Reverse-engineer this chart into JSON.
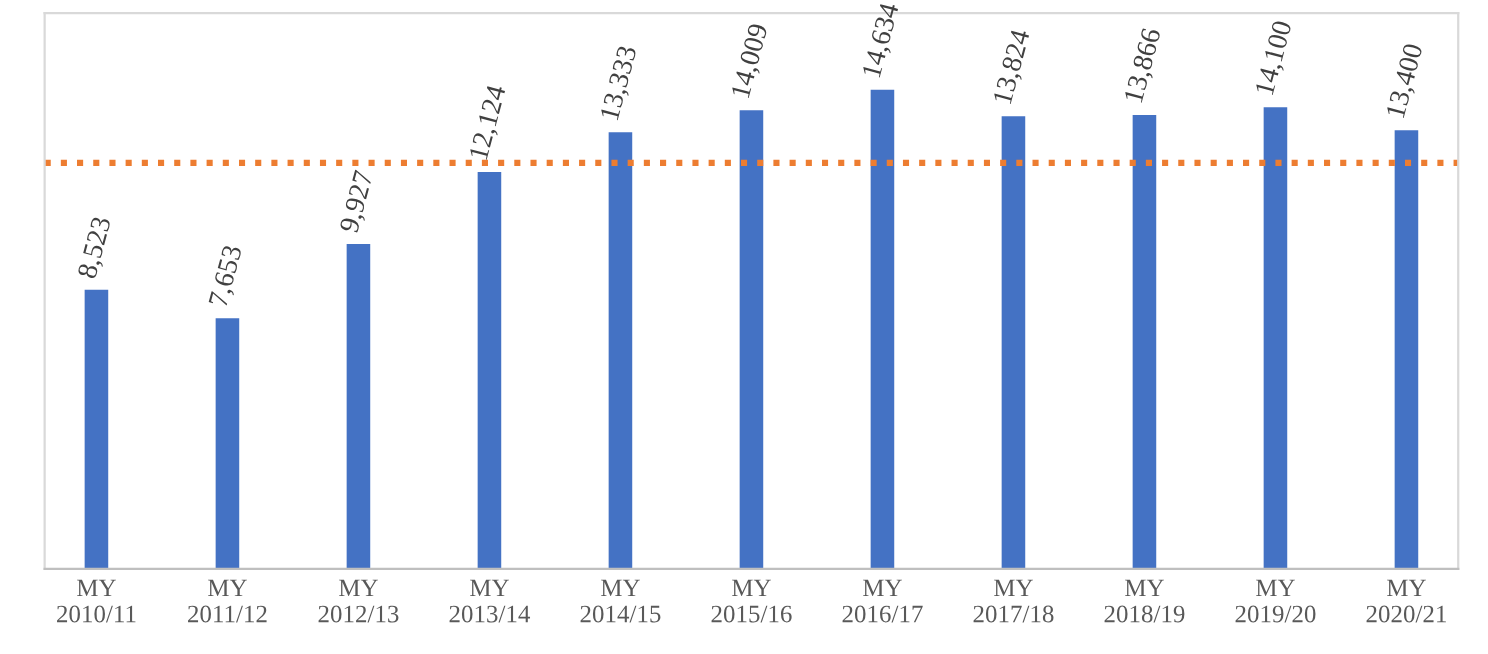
{
  "chart_data": {
    "type": "bar",
    "categories": [
      "MY\n2010/11",
      "MY\n2011/12",
      "MY\n2012/13",
      "MY\n2013/14",
      "MY\n2014/15",
      "MY\n2015/16",
      "MY\n2016/17",
      "MY\n2017/18",
      "MY\n2018/19",
      "MY\n2019/20",
      "MY\n2020/21"
    ],
    "values": [
      8523,
      7653,
      9927,
      12124,
      13333,
      14009,
      14634,
      13824,
      13866,
      14100,
      13400
    ],
    "value_labels": [
      "8,523",
      "7,653",
      "9,927",
      "12,124",
      "13,333",
      "14,009",
      "14,634",
      "13,824",
      "13,866",
      "14,100",
      "13,400"
    ],
    "color": "#4472c4",
    "tick_labels": "x",
    "grid": false,
    "legend": false,
    "ref_lines": [
      {
        "axis": "y",
        "value": 12400,
        "color": "#ed7d31",
        "line_style": "dotted"
      }
    ]
  }
}
